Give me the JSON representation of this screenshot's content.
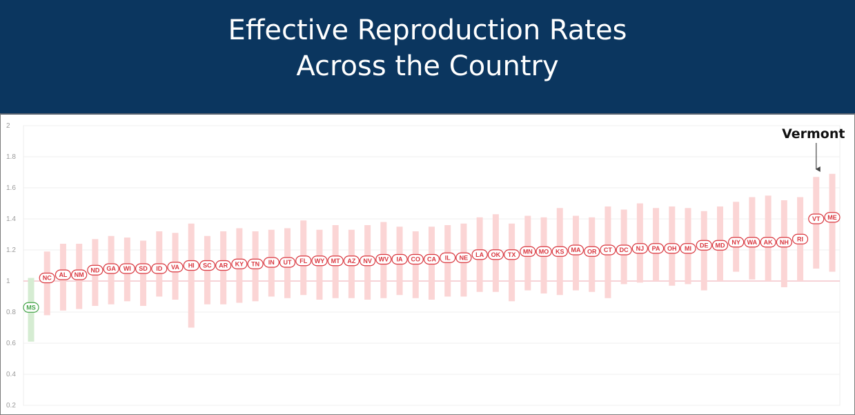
{
  "header": {
    "title_line1": "Effective Reproduction Rates",
    "title_line2": "Across the Country"
  },
  "colors": {
    "banner": "#0b365f",
    "bar_red": "#fbd5d5",
    "label_red": "#d9363e",
    "bar_green": "#d5ecd2",
    "label_green": "#45a449",
    "reference_line": "#f0b6bf"
  },
  "chart_data": {
    "type": "range",
    "title": "",
    "xlabel": "",
    "ylabel": "",
    "ylim": [
      0.2,
      2
    ],
    "yticks": [
      "2",
      "1.8",
      "1.6",
      "1.4",
      "1.2",
      "1",
      "0.8",
      "0.6",
      "0.4",
      "0.2"
    ],
    "reference_y": 1,
    "grid": true,
    "annotation": {
      "text": "Vermont",
      "target": "VT"
    },
    "states": [
      {
        "label": "MS",
        "value": 0.83,
        "low": 0.61,
        "high": 1.02
      },
      {
        "label": "NC",
        "value": 1.02,
        "low": 0.78,
        "high": 1.19
      },
      {
        "label": "AL",
        "value": 1.04,
        "low": 0.81,
        "high": 1.24
      },
      {
        "label": "NM",
        "value": 1.04,
        "low": 0.82,
        "high": 1.24
      },
      {
        "label": "ND",
        "value": 1.07,
        "low": 0.84,
        "high": 1.27
      },
      {
        "label": "GA",
        "value": 1.08,
        "low": 0.85,
        "high": 1.29
      },
      {
        "label": "WI",
        "value": 1.08,
        "low": 0.87,
        "high": 1.28
      },
      {
        "label": "SD",
        "value": 1.08,
        "low": 0.84,
        "high": 1.26
      },
      {
        "label": "ID",
        "value": 1.08,
        "low": 0.9,
        "high": 1.32
      },
      {
        "label": "VA",
        "value": 1.09,
        "low": 0.88,
        "high": 1.31
      },
      {
        "label": "HI",
        "value": 1.1,
        "low": 0.7,
        "high": 1.37
      },
      {
        "label": "SC",
        "value": 1.1,
        "low": 0.85,
        "high": 1.29
      },
      {
        "label": "AR",
        "value": 1.1,
        "low": 0.85,
        "high": 1.32
      },
      {
        "label": "KY",
        "value": 1.11,
        "low": 0.86,
        "high": 1.34
      },
      {
        "label": "TN",
        "value": 1.11,
        "low": 0.87,
        "high": 1.32
      },
      {
        "label": "IN",
        "value": 1.12,
        "low": 0.9,
        "high": 1.33
      },
      {
        "label": "UT",
        "value": 1.12,
        "low": 0.89,
        "high": 1.34
      },
      {
        "label": "FL",
        "value": 1.13,
        "low": 0.91,
        "high": 1.39
      },
      {
        "label": "WY",
        "value": 1.13,
        "low": 0.88,
        "high": 1.33
      },
      {
        "label": "MT",
        "value": 1.13,
        "low": 0.89,
        "high": 1.36
      },
      {
        "label": "AZ",
        "value": 1.13,
        "low": 0.89,
        "high": 1.33
      },
      {
        "label": "NV",
        "value": 1.13,
        "low": 0.88,
        "high": 1.36
      },
      {
        "label": "WV",
        "value": 1.14,
        "low": 0.89,
        "high": 1.38
      },
      {
        "label": "IA",
        "value": 1.14,
        "low": 0.91,
        "high": 1.35
      },
      {
        "label": "CO",
        "value": 1.14,
        "low": 0.89,
        "high": 1.32
      },
      {
        "label": "CA",
        "value": 1.14,
        "low": 0.88,
        "high": 1.35
      },
      {
        "label": "IL",
        "value": 1.15,
        "low": 0.9,
        "high": 1.36
      },
      {
        "label": "NE",
        "value": 1.15,
        "low": 0.9,
        "high": 1.37
      },
      {
        "label": "LA",
        "value": 1.17,
        "low": 0.93,
        "high": 1.41
      },
      {
        "label": "OK",
        "value": 1.17,
        "low": 0.93,
        "high": 1.43
      },
      {
        "label": "TX",
        "value": 1.17,
        "low": 0.87,
        "high": 1.37
      },
      {
        "label": "MN",
        "value": 1.19,
        "low": 0.94,
        "high": 1.42
      },
      {
        "label": "MO",
        "value": 1.19,
        "low": 0.92,
        "high": 1.41
      },
      {
        "label": "KS",
        "value": 1.19,
        "low": 0.91,
        "high": 1.47
      },
      {
        "label": "MA",
        "value": 1.2,
        "low": 0.94,
        "high": 1.42
      },
      {
        "label": "OR",
        "value": 1.19,
        "low": 0.93,
        "high": 1.41
      },
      {
        "label": "CT",
        "value": 1.2,
        "low": 0.89,
        "high": 1.48
      },
      {
        "label": "DC",
        "value": 1.2,
        "low": 0.98,
        "high": 1.46
      },
      {
        "label": "NJ",
        "value": 1.21,
        "low": 0.99,
        "high": 1.5
      },
      {
        "label": "PA",
        "value": 1.21,
        "low": 1.0,
        "high": 1.47
      },
      {
        "label": "OH",
        "value": 1.21,
        "low": 0.97,
        "high": 1.48
      },
      {
        "label": "MI",
        "value": 1.21,
        "low": 0.98,
        "high": 1.47
      },
      {
        "label": "DE",
        "value": 1.23,
        "low": 0.94,
        "high": 1.45
      },
      {
        "label": "MD",
        "value": 1.23,
        "low": 1.0,
        "high": 1.48
      },
      {
        "label": "NY",
        "value": 1.25,
        "low": 1.06,
        "high": 1.51
      },
      {
        "label": "WA",
        "value": 1.25,
        "low": 1.01,
        "high": 1.54
      },
      {
        "label": "AK",
        "value": 1.25,
        "low": 1.0,
        "high": 1.55
      },
      {
        "label": "NH",
        "value": 1.25,
        "low": 0.96,
        "high": 1.52
      },
      {
        "label": "RI",
        "value": 1.27,
        "low": 1.0,
        "high": 1.54
      },
      {
        "label": "VT",
        "value": 1.4,
        "low": 1.08,
        "high": 1.67
      },
      {
        "label": "ME",
        "value": 1.41,
        "low": 1.06,
        "high": 1.69
      }
    ]
  }
}
